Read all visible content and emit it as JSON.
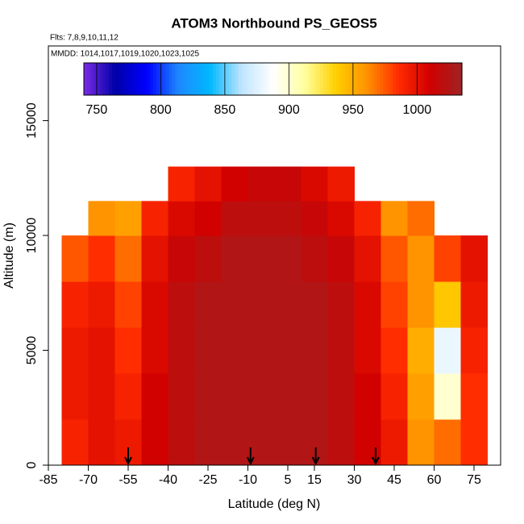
{
  "chart_data": {
    "type": "heatmap",
    "title": "ATOM3 Northbound PS_GEOS5",
    "subtitle": "Flts: 7,8,9,10,11,12",
    "annotation": "MMDD: 1014,1017,1019,1020,1023,1025",
    "x_label": "Latitude (deg N)",
    "y_label": "Altitude (m)",
    "xlim": [
      -85,
      85
    ],
    "ylim": [
      0,
      18250
    ],
    "xticks": [
      -85,
      -70,
      -55,
      -40,
      -25,
      -10,
      5,
      15,
      30,
      45,
      60,
      75
    ],
    "yticks": [
      0,
      5000,
      10000,
      15000
    ],
    "x_bins": [
      -80,
      -70,
      -60,
      -50,
      -40,
      -30,
      -20,
      -10,
      0,
      10,
      20,
      30,
      40,
      50,
      60,
      70,
      80
    ],
    "y_bins": [
      0,
      2000,
      4000,
      6000,
      8000,
      10000,
      11500,
      13000
    ],
    "z": [
      [
        990,
        1000,
        995,
        1010,
        1020,
        1025,
        1025,
        1025,
        1025,
        1025,
        1020,
        1010,
        995,
        960,
        970,
        985
      ],
      [
        995,
        1000,
        990,
        1010,
        1020,
        1025,
        1025,
        1025,
        1025,
        1025,
        1020,
        1010,
        990,
        955,
        900,
        985
      ],
      [
        995,
        1000,
        985,
        1005,
        1020,
        1025,
        1025,
        1025,
        1025,
        1025,
        1020,
        1005,
        985,
        950,
        880,
        990
      ],
      [
        990,
        995,
        980,
        1005,
        1020,
        1025,
        1025,
        1025,
        1025,
        1025,
        1020,
        1005,
        980,
        960,
        940,
        995
      ],
      [
        975,
        985,
        970,
        1000,
        1015,
        1020,
        1025,
        1025,
        1025,
        1020,
        1015,
        1000,
        975,
        960,
        980,
        1000
      ],
      [
        null,
        960,
        955,
        990,
        1005,
        1010,
        1020,
        1020,
        1020,
        1015,
        1005,
        990,
        960,
        970,
        null,
        null
      ],
      [
        null,
        null,
        null,
        null,
        990,
        1000,
        1010,
        1015,
        1015,
        1005,
        995,
        null,
        null,
        null,
        null,
        null
      ]
    ],
    "zlim": [
      740,
      1035
    ],
    "zticks": [
      750,
      800,
      850,
      900,
      950,
      1000
    ],
    "colormap": [
      "#7a2be6",
      "#0000a8",
      "#0000ff",
      "#1e88ff",
      "#00b8ff",
      "#bfe4ff",
      "#ffffff",
      "#ffffa0",
      "#ffd000",
      "#ff9000",
      "#ff2a00",
      "#d00000",
      "#9e2424"
    ],
    "markers": [
      -55,
      -9,
      15.5,
      38
    ]
  }
}
